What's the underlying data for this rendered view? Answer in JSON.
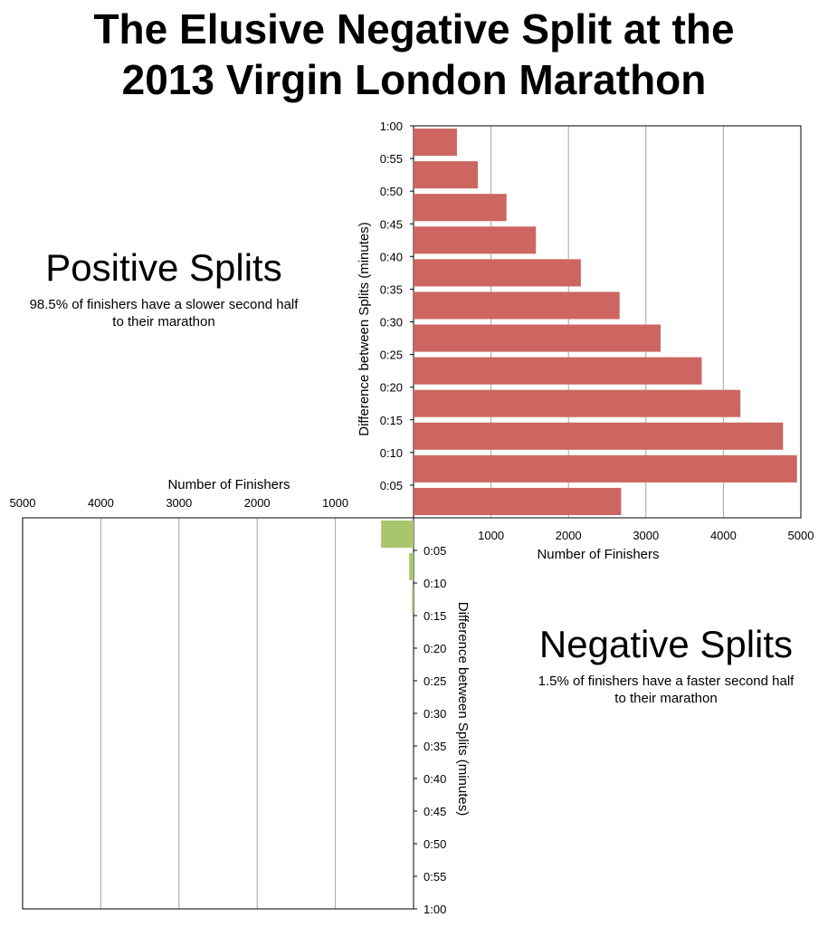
{
  "title": {
    "line1": "The Elusive Negative Split at the",
    "line2": "2013 Virgin London Marathon"
  },
  "positive": {
    "heading": "Positive Splits",
    "note": "98.5% of finishers have a slower second half to their marathon"
  },
  "negative": {
    "heading": "Negative Splits",
    "note": "1.5% of finishers have a faster second half to their marathon"
  },
  "colors": {
    "positive_bar": "#cd6660",
    "negative_bar": "#a9c56e",
    "grid": "#a6a6a6"
  },
  "chart_data": [
    {
      "type": "bar",
      "orientation": "horizontal",
      "name": "Positive Splits",
      "xlabel": "Number of Finishers",
      "ylabel": "Difference between Splits (minutes)",
      "xlim": [
        0,
        5000
      ],
      "xticks": [
        "1000",
        "2000",
        "3000",
        "4000",
        "5000"
      ],
      "yticks": [
        "1:00",
        "0:55",
        "0:50",
        "0:45",
        "0:40",
        "0:35",
        "0:30",
        "0:25",
        "0:20",
        "0:15",
        "0:10",
        "0:05"
      ],
      "values": [
        560,
        830,
        1200,
        1580,
        2160,
        2660,
        3190,
        3720,
        4220,
        4770,
        4950,
        2680
      ],
      "grid": true
    },
    {
      "type": "bar",
      "orientation": "horizontal",
      "direction": "reversed",
      "name": "Negative Splits",
      "xlabel": "Number of Finishers",
      "ylabel": "Difference between Splits (minutes)",
      "xlim": [
        0,
        5000
      ],
      "xticks": [
        "5000",
        "4000",
        "3000",
        "2000",
        "1000"
      ],
      "yticks": [
        "0:05",
        "0:10",
        "0:15",
        "0:20",
        "0:25",
        "0:30",
        "0:35",
        "0:40",
        "0:45",
        "0:50",
        "0:55",
        "1:00"
      ],
      "values": [
        415,
        55,
        20,
        0,
        0,
        0,
        0,
        0,
        0,
        0,
        0,
        0
      ],
      "grid": true
    }
  ]
}
